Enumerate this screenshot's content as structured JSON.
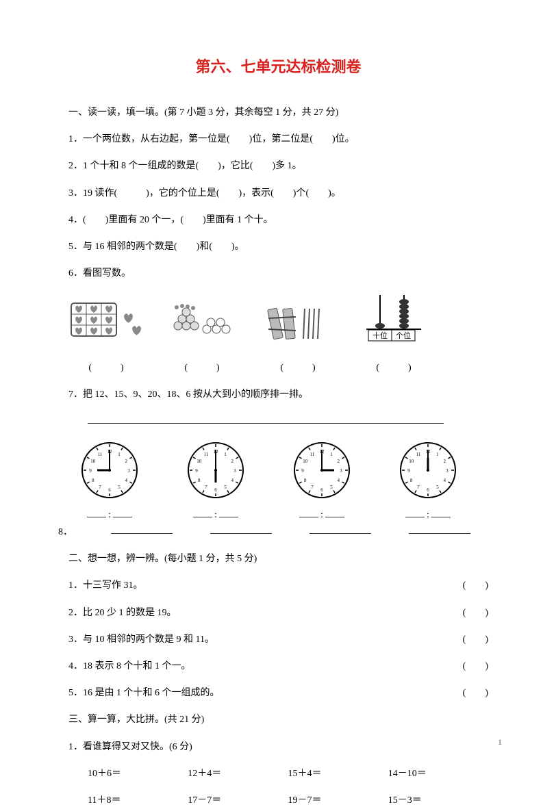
{
  "title": "第六、七单元达标检测卷",
  "sec1": {
    "head": "一、读一读，填一填。(第 7 小题 3 分，其余每空 1 分，共 27 分)",
    "q1": "1．一个两位数，从右边起，第一位是(　　)位，第二位是(　　)位。",
    "q2": "2．1 个十和 8 个一组成的数是(　　)，它比(　　)多 1。",
    "q3": "3．19 读作(　　　)，它的个位上是(　　)，表示(　　)个(　　)。",
    "q4": "4．(　　)里面有 20 个一，(　　)里面有 1 个十。",
    "q5": "5．与 16 相邻的两个数是(　　)和(　　)。",
    "q6": "6．看图写数。",
    "q6par": [
      "(　　　)",
      "(　　　)",
      "(　　　)",
      "(　　　)"
    ],
    "q6_abacus": {
      "tens": "十位",
      "ones": "个位"
    },
    "q7": "7．把 12、15、9、20、18、6 按从大到小的顺序排一排。",
    "clocks": [
      {
        "hour": 9,
        "min": 0
      },
      {
        "hour": 6,
        "min": 0
      },
      {
        "hour": 3,
        "min": 0
      },
      {
        "hour": 12,
        "min": 0
      }
    ],
    "q8": "8．"
  },
  "sec2": {
    "head": "二、想一想，辨一辨。(每小题 1 分，共 5 分)",
    "items": [
      "1．十三写作 31。",
      "2．比 20 少 1 的数是 19。",
      "3．与 10 相邻的两个数是 9 和 11。",
      "4．18 表示 8 个十和 1 个一。",
      "5．16 是由 1 个十和 6 个一组成的。"
    ],
    "paren": "(　　)"
  },
  "sec3": {
    "head": "三、算一算，大比拼。(共 21 分)",
    "q1": "1．看谁算得又对又快。(6 分)",
    "row1": [
      "10＋6＝",
      "12＋4＝",
      "15＋4＝",
      "14－10＝"
    ],
    "row2": [
      "11＋8＝",
      "17－7＝",
      "19－7＝",
      "15－3＝"
    ]
  },
  "pagenum": "1",
  "colors": {
    "title": "#d8221f",
    "text": "#000",
    "bg": "#ffffff",
    "icon": "#777"
  }
}
